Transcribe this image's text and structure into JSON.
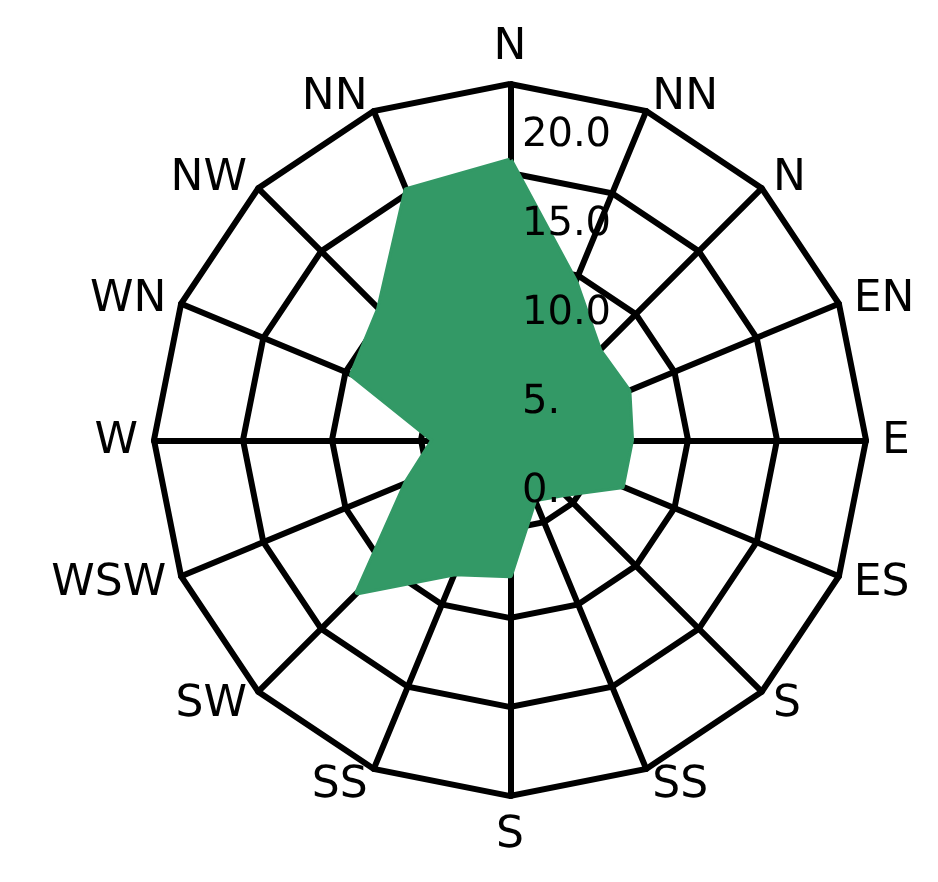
{
  "chart_data": {
    "type": "radar",
    "categories": [
      "N",
      "NN",
      "N",
      "EN",
      "E",
      "ES",
      "S",
      "SS",
      "S",
      "SS",
      "SW",
      "WSW",
      "W",
      "WN",
      "NW",
      "NN"
    ],
    "series": [
      {
        "color": "#339966",
        "values": [
          15.7,
          9.6,
          7.1,
          7.2,
          6.8,
          6.8,
          4.3,
          3.6,
          7.6,
          8.1,
          12.1,
          6.3,
          4.3,
          9.6,
          10.4,
          15.2
        ]
      }
    ],
    "ylim": [
      0,
      20
    ],
    "yticks": [
      {
        "value": 0,
        "label": "0."
      },
      {
        "value": 5,
        "label": "5."
      },
      {
        "value": 10,
        "label": "10.0"
      },
      {
        "value": 15,
        "label": "15.0"
      },
      {
        "value": 20,
        "label": "20.0"
      }
    ],
    "grid": true,
    "marker": "none"
  }
}
